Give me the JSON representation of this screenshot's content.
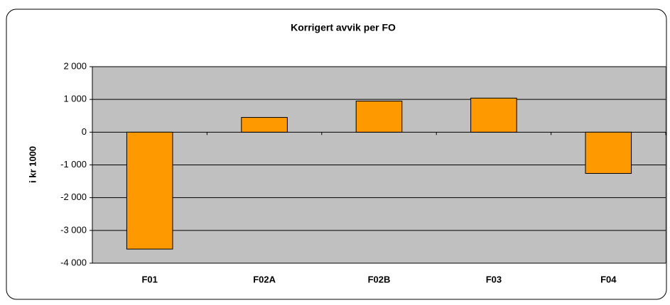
{
  "chart_data": {
    "type": "bar",
    "title": "Korrigert avvik per FO",
    "y_label": "i kr 1000",
    "categories": [
      "F01",
      "F02A",
      "F02B",
      "F03",
      "F04"
    ],
    "values": [
      -3570,
      450,
      950,
      1040,
      -1260
    ],
    "color": "#ff9900",
    "plot_background": "#c0c0c0",
    "ylim": [
      -4000,
      2000
    ],
    "yticks": [
      {
        "value": -4000,
        "label": "-4 000"
      },
      {
        "value": -3000,
        "label": "-3 000"
      },
      {
        "value": -2000,
        "label": "-2 000"
      },
      {
        "value": -1000,
        "label": "-1 000"
      },
      0,
      {
        "value": 1000,
        "label": "1 000"
      },
      {
        "value": 2000,
        "label": "2 000"
      }
    ],
    "grid": true
  }
}
